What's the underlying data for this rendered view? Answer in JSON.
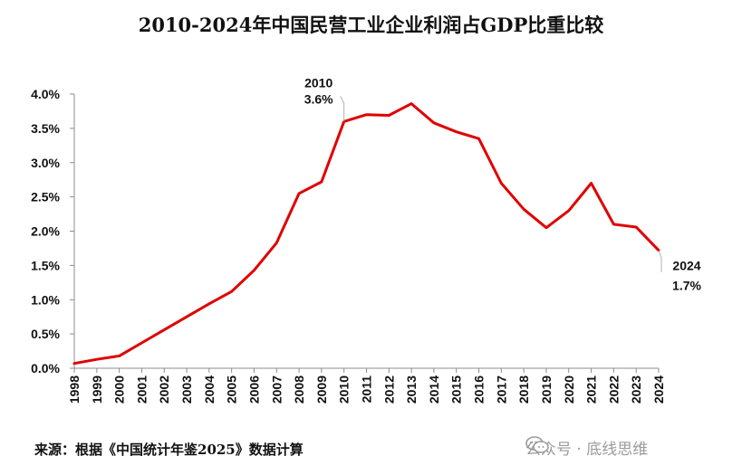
{
  "chart_data": {
    "type": "line",
    "title": "2010-2024年中国民营工业企业利润占GDP比重比较",
    "xlabel": "",
    "ylabel": "",
    "x": [
      "1998",
      "1999",
      "2000",
      "2001",
      "2002",
      "2003",
      "2004",
      "2005",
      "2006",
      "2007",
      "2008",
      "2009",
      "2010",
      "2011",
      "2012",
      "2013",
      "2014",
      "2015",
      "2016",
      "2017",
      "2018",
      "2019",
      "2020",
      "2021",
      "2022",
      "2023",
      "2024"
    ],
    "series": [
      {
        "name": "",
        "color": "#e00000",
        "values": [
          0.07,
          0.13,
          0.18,
          0.37,
          0.56,
          0.75,
          0.94,
          1.12,
          1.43,
          1.83,
          2.55,
          2.72,
          3.6,
          3.7,
          3.69,
          3.86,
          3.58,
          3.45,
          3.35,
          2.7,
          2.32,
          2.05,
          2.3,
          2.7,
          2.1,
          2.06,
          1.72
        ]
      }
    ],
    "ylim": [
      0,
      4.0
    ],
    "yticks": [
      "0.0%",
      "0.5%",
      "1.0%",
      "1.5%",
      "2.0%",
      "2.5%",
      "3.0%",
      "3.5%",
      "4.0%"
    ],
    "grid": false,
    "annotations": [
      {
        "x": "2010",
        "line1": "2010",
        "line2": "3.6%"
      },
      {
        "x": "2024",
        "line1": "2024",
        "line2": "1.7%"
      }
    ]
  },
  "footer": {
    "source": "来源：根据《中国统计年鉴2025》数据计算",
    "watermark": "公众号 · 底线思维"
  }
}
